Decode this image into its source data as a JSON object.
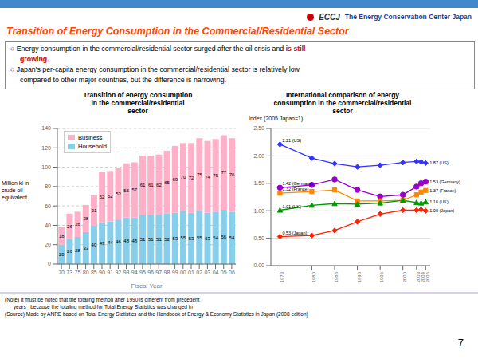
{
  "header_logo_text": "ECCJ",
  "header_text": "The Energy Conservation Center Japan",
  "main_title": "Transition of Energy Consumption in the Commercial/Residential Sector",
  "bullets": [
    [
      {
        "text": "○ Energy consumption in the commercial/residential sector surged after the oil crisis and"
      },
      {
        "text": "is still",
        "color": "#CC0000"
      }
    ],
    [
      {
        "text": "growing.",
        "color": "#CC0000"
      }
    ],
    [
      {
        "text": "○ Japan's per-capita energy consumption in the commercial/residential sector is relatively low"
      }
    ],
    [
      {
        "text": "compared to other major countries, but the difference is narrowing."
      }
    ]
  ],
  "note": "(Note) It must be noted that the totaling method after 1990 is different from precedent\n      years   because the totaling method for Total Energy Statistics was changed in\n(Source) Made by ANRE based on Total Energy Statistics and the Handbook of Energy & Economy Statistics in Japan (2008 edition)",
  "page_number": "7",
  "chart_data": [
    {
      "type": "bar",
      "stacked": true,
      "title": "Transition of energy consumption\nin the commercial/residential\nsector",
      "xlabel": "Fiscal Year",
      "ylabel": "Million kl in\ncrude oil\nequivalent",
      "categories": [
        "70",
        "73",
        "75",
        "80",
        "85",
        "90",
        "91",
        "92",
        "93",
        "94",
        "95",
        "96",
        "97",
        "98",
        "99",
        "00",
        "01",
        "02",
        "03",
        "04",
        "05",
        "06"
      ],
      "series": [
        {
          "name": "Household",
          "color": "#87CEEB",
          "values": [
            20,
            26,
            28,
            33,
            40,
            43,
            44,
            46,
            48,
            48,
            51,
            51,
            51,
            52,
            53,
            55,
            53,
            55,
            53,
            54,
            56,
            54
          ]
        },
        {
          "name": "Business",
          "color": "#FFB0C8",
          "values": [
            18,
            26,
            26,
            28,
            31,
            52,
            52,
            53,
            56,
            57,
            61,
            61,
            62,
            65,
            69,
            70,
            72,
            75,
            74,
            75,
            77,
            76
          ]
        }
      ],
      "ylim": [
        0,
        140
      ],
      "yticks": [
        0,
        20,
        40,
        60,
        80,
        100,
        120,
        140
      ],
      "grid": true,
      "legend": "upper left",
      "data_labels": true
    },
    {
      "type": "line",
      "title": "International comparison of energy\nconsumption in the commercial/residential\nsector",
      "ylabel": "Index (2005 Japan=1)",
      "x": [
        1973,
        1980,
        1985,
        1990,
        1995,
        2000,
        2003,
        2004,
        2005
      ],
      "xlim": [
        1971,
        2006
      ],
      "xticks": [
        1973,
        1980,
        1985,
        1990,
        1995,
        2000,
        2003,
        2004,
        2005
      ],
      "ylim": [
        0.0,
        2.5
      ],
      "yticks": [
        {
          "value": 0.0,
          "label": "0.00"
        },
        {
          "value": 0.5,
          "label": "0.50"
        },
        {
          "value": 1.0,
          "label": "1.00"
        },
        {
          "value": 1.5,
          "label": "1.50"
        },
        {
          "value": 2.0,
          "label": "2.00"
        },
        {
          "value": 2.5,
          "label": "2.50"
        }
      ],
      "grid": true,
      "series": [
        {
          "name": "US",
          "color": "#3333FF",
          "marker": "diamond",
          "values": [
            2.21,
            1.96,
            1.86,
            1.8,
            1.83,
            1.88,
            1.9,
            1.89,
            1.87
          ]
        },
        {
          "name": "Germany",
          "color": "#9900CC",
          "marker": "circle",
          "values": [
            1.42,
            1.47,
            1.57,
            1.38,
            1.26,
            1.29,
            1.44,
            1.5,
            1.53
          ]
        },
        {
          "name": "France",
          "color": "#FF8800",
          "marker": "square",
          "values": [
            1.32,
            1.35,
            1.38,
            1.18,
            1.18,
            1.19,
            1.29,
            1.34,
            1.37
          ]
        },
        {
          "name": "UK",
          "color": "#009900",
          "marker": "triangle",
          "values": [
            1.01,
            1.1,
            1.13,
            1.12,
            1.14,
            1.19,
            1.15,
            1.14,
            1.16
          ]
        },
        {
          "name": "Japan",
          "color": "#FF2200",
          "marker": "diamond",
          "values": [
            0.53,
            0.55,
            0.64,
            0.8,
            0.94,
            1.01,
            1.01,
            1.02,
            1.0
          ]
        }
      ],
      "annotations": [
        {
          "x": 1973,
          "y": 2.21,
          "text": "2.21 (US)"
        },
        {
          "x": 1973,
          "y": 1.42,
          "text": "1.42 (Germany)"
        },
        {
          "x": 1973,
          "y": 1.32,
          "text": "1.32 (France)"
        },
        {
          "x": 1973,
          "y": 1.01,
          "text": "1.01 (UK)"
        },
        {
          "x": 1973,
          "y": 0.53,
          "text": "0.53 (Japan)"
        },
        {
          "x": 2005,
          "y": 1.87,
          "text": "1.87 (US)"
        },
        {
          "x": 2005,
          "y": 1.53,
          "text": "1.53 (Germany)"
        },
        {
          "x": 2005,
          "y": 1.37,
          "text": "1.37 (France)"
        },
        {
          "x": 2005,
          "y": 1.16,
          "text": "1.16 (UK)"
        },
        {
          "x": 2005,
          "y": 1.0,
          "text": "1.00 (Japan)"
        }
      ]
    }
  ]
}
